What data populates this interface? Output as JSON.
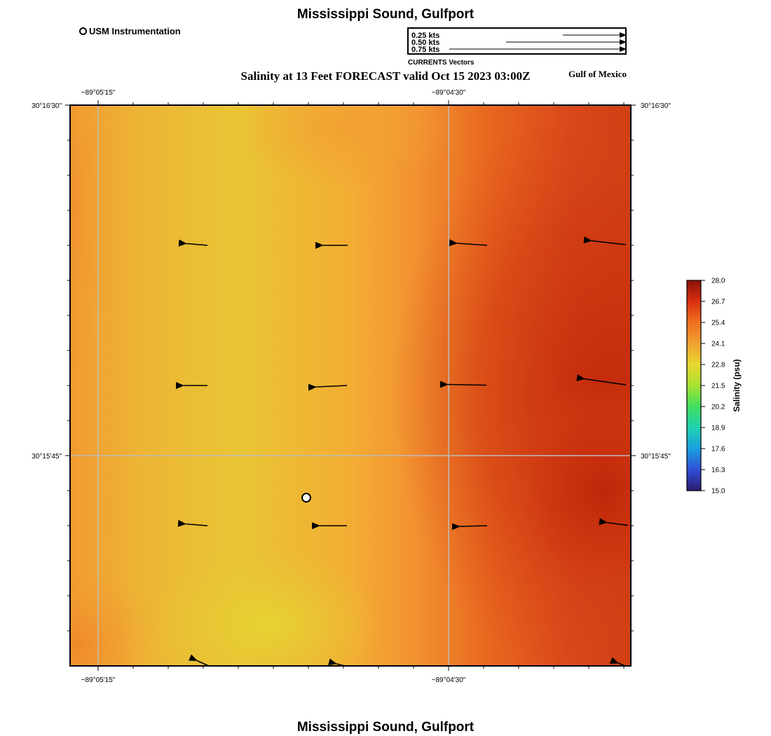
{
  "page": {
    "title_top": "Mississippi Sound, Gulfport",
    "title_bottom": "Mississippi Sound, Gulfport",
    "subtitle": "Salinity at 13 Feet FORECAST valid Oct 15 2023 03:00Z",
    "region_label": "Gulf of Mexico"
  },
  "station_legend": {
    "label": "USM Instrumentation",
    "icon": "station-circle-icon"
  },
  "vector_legend": {
    "caption": "CURRENTS Vectors",
    "entries": [
      {
        "label": "0.25 kts",
        "speed_kts": 0.25
      },
      {
        "label": "0.50 kts",
        "speed_kts": 0.5
      },
      {
        "label": "0.75 kts",
        "speed_kts": 0.75
      }
    ]
  },
  "map_axes": {
    "lon_ticks": [
      "−89°05'15\"",
      "−89°04'30\""
    ],
    "lat_ticks": [
      "30°16'30\"",
      "30°15'45\""
    ]
  },
  "colorbar": {
    "title": "Salinity (psu)",
    "ticks": [
      "28.0",
      "26.7",
      "25.4",
      "24.1",
      "22.8",
      "21.5",
      "20.2",
      "18.9",
      "17.6",
      "16.3",
      "15.0"
    ],
    "min": 15.0,
    "max": 28.0,
    "colors": [
      "#2a1a6e",
      "#3050d8",
      "#1aa0e0",
      "#20d0b0",
      "#40e060",
      "#a8e030",
      "#e8d830",
      "#f0a030",
      "#f07020",
      "#d83010",
      "#8a1008"
    ]
  },
  "field_colors": {
    "yellow": "#e6cf33",
    "orange": "#f59c33",
    "red_orange": "#e5541a",
    "deep_red": "#c42a0a"
  }
}
